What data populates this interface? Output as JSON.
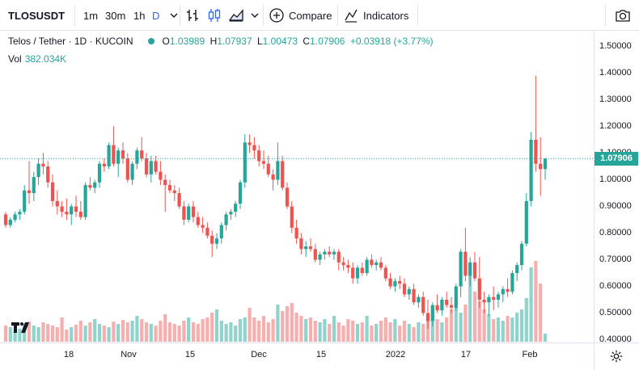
{
  "toolbar": {
    "symbol": "TLOSUSDT",
    "intervals": [
      "1m",
      "30m",
      "1h",
      "D"
    ],
    "active_interval": "D",
    "compare_label": "Compare",
    "indicators_label": "Indicators"
  },
  "legend": {
    "pair": "Telos / Tether · 1D · KUCOIN",
    "open_label": "O",
    "open": "1.03989",
    "high_label": "H",
    "high": "1.07937",
    "low_label": "L",
    "low": "1.00473",
    "close_label": "C",
    "close": "1.07906",
    "change": "+0.03918 (+3.77%)",
    "vol_label": "Vol",
    "vol_value": "382.034K"
  },
  "price_axis": {
    "ticks": [
      "1.50000",
      "1.40000",
      "1.30000",
      "1.20000",
      "1.10000",
      "1.00000",
      "0.90000",
      "0.80000",
      "0.70000",
      "0.60000",
      "0.50000",
      "0.40000"
    ],
    "last_price": "1.07906"
  },
  "time_axis": {
    "ticks": [
      "18",
      "Nov",
      "15",
      "Dec",
      "15",
      "2022",
      "17",
      "Feb"
    ]
  },
  "colors": {
    "up": "#26a69a",
    "down": "#ef5350",
    "vol_up": "#8fd3cc",
    "vol_down": "#f7aeae"
  },
  "chart_data": {
    "type": "candlestick",
    "symbol": "TLOSUSDT",
    "exchange": "KUCOIN",
    "interval": "1D",
    "ylim": [
      0.35,
      1.5
    ],
    "x_tick_labels": [
      "18",
      "Nov",
      "15",
      "Dec",
      "15",
      "2022",
      "17",
      "Feb"
    ],
    "candles": [
      [
        0.87,
        0.88,
        0.82,
        0.83
      ],
      [
        0.83,
        0.86,
        0.82,
        0.85
      ],
      [
        0.85,
        0.88,
        0.84,
        0.87
      ],
      [
        0.87,
        0.89,
        0.85,
        0.88
      ],
      [
        0.88,
        0.98,
        0.87,
        0.96
      ],
      [
        0.96,
        1.07,
        0.91,
        0.95
      ],
      [
        0.95,
        1.03,
        0.92,
        1.01
      ],
      [
        1.01,
        1.08,
        0.98,
        1.06
      ],
      [
        1.06,
        1.1,
        1.02,
        1.05
      ],
      [
        1.05,
        1.07,
        0.97,
        0.99
      ],
      [
        0.99,
        1.02,
        0.9,
        0.92
      ],
      [
        0.92,
        0.96,
        0.87,
        0.9
      ],
      [
        0.9,
        0.92,
        0.86,
        0.88
      ],
      [
        0.88,
        0.93,
        0.85,
        0.87
      ],
      [
        0.87,
        0.91,
        0.83,
        0.9
      ],
      [
        0.9,
        0.94,
        0.86,
        0.88
      ],
      [
        0.88,
        0.92,
        0.85,
        0.86
      ],
      [
        0.86,
        0.99,
        0.85,
        0.98
      ],
      [
        0.98,
        1.01,
        0.96,
        0.97
      ],
      [
        0.97,
        1.0,
        0.95,
        0.99
      ],
      [
        0.99,
        1.07,
        0.97,
        1.06
      ],
      [
        1.06,
        1.08,
        1.03,
        1.05
      ],
      [
        1.05,
        1.14,
        1.04,
        1.13
      ],
      [
        1.13,
        1.2,
        1.05,
        1.06
      ],
      [
        1.06,
        1.12,
        1.01,
        1.11
      ],
      [
        1.11,
        1.14,
        1.06,
        1.08
      ],
      [
        1.08,
        1.1,
        0.99,
        1.0
      ],
      [
        1.0,
        1.07,
        0.98,
        1.06
      ],
      [
        1.06,
        1.12,
        1.04,
        1.11
      ],
      [
        1.11,
        1.16,
        1.07,
        1.08
      ],
      [
        1.08,
        1.1,
        1.01,
        1.02
      ],
      [
        1.02,
        1.09,
        0.99,
        1.07
      ],
      [
        1.07,
        1.09,
        1.02,
        1.03
      ],
      [
        1.03,
        1.07,
        0.98,
        1.0
      ],
      [
        1.0,
        1.02,
        0.88,
        0.98
      ],
      [
        0.98,
        1.0,
        0.95,
        0.96
      ],
      [
        0.96,
        0.98,
        0.92,
        0.95
      ],
      [
        0.95,
        0.97,
        0.89,
        0.9
      ],
      [
        0.9,
        0.92,
        0.83,
        0.85
      ],
      [
        0.85,
        0.91,
        0.84,
        0.9
      ],
      [
        0.9,
        0.92,
        0.84,
        0.86
      ],
      [
        0.86,
        0.88,
        0.82,
        0.83
      ],
      [
        0.83,
        0.86,
        0.8,
        0.82
      ],
      [
        0.82,
        0.84,
        0.78,
        0.79
      ],
      [
        0.79,
        0.81,
        0.71,
        0.76
      ],
      [
        0.76,
        0.8,
        0.74,
        0.78
      ],
      [
        0.78,
        0.84,
        0.76,
        0.83
      ],
      [
        0.83,
        0.88,
        0.81,
        0.87
      ],
      [
        0.87,
        0.89,
        0.85,
        0.88
      ],
      [
        0.88,
        0.92,
        0.86,
        0.91
      ],
      [
        0.91,
        1.0,
        0.89,
        0.99
      ],
      [
        0.99,
        1.17,
        0.97,
        1.14
      ],
      [
        1.14,
        1.17,
        1.1,
        1.13
      ],
      [
        1.13,
        1.16,
        1.08,
        1.11
      ],
      [
        1.11,
        1.13,
        1.05,
        1.07
      ],
      [
        1.07,
        1.11,
        1.04,
        1.06
      ],
      [
        1.06,
        1.09,
        1.01,
        1.02
      ],
      [
        1.02,
        1.04,
        0.96,
        1.0
      ],
      [
        1.0,
        1.14,
        0.98,
        1.07
      ],
      [
        1.07,
        1.09,
        0.96,
        0.97
      ],
      [
        0.97,
        0.99,
        0.89,
        0.9
      ],
      [
        0.9,
        0.92,
        0.8,
        0.82
      ],
      [
        0.82,
        0.85,
        0.76,
        0.78
      ],
      [
        0.78,
        0.8,
        0.72,
        0.74
      ],
      [
        0.74,
        0.77,
        0.71,
        0.75
      ],
      [
        0.75,
        0.78,
        0.73,
        0.74
      ],
      [
        0.74,
        0.76,
        0.69,
        0.7
      ],
      [
        0.7,
        0.73,
        0.68,
        0.72
      ],
      [
        0.72,
        0.74,
        0.7,
        0.73
      ],
      [
        0.73,
        0.75,
        0.71,
        0.72
      ],
      [
        0.72,
        0.74,
        0.7,
        0.73
      ],
      [
        0.73,
        0.74,
        0.66,
        0.69
      ],
      [
        0.69,
        0.71,
        0.66,
        0.68
      ],
      [
        0.68,
        0.7,
        0.65,
        0.67
      ],
      [
        0.67,
        0.69,
        0.61,
        0.63
      ],
      [
        0.63,
        0.68,
        0.61,
        0.67
      ],
      [
        0.67,
        0.69,
        0.64,
        0.65
      ],
      [
        0.65,
        0.71,
        0.64,
        0.7
      ],
      [
        0.7,
        0.72,
        0.67,
        0.68
      ],
      [
        0.68,
        0.7,
        0.66,
        0.69
      ],
      [
        0.69,
        0.71,
        0.66,
        0.67
      ],
      [
        0.67,
        0.68,
        0.62,
        0.63
      ],
      [
        0.63,
        0.65,
        0.59,
        0.6
      ],
      [
        0.6,
        0.63,
        0.58,
        0.62
      ],
      [
        0.62,
        0.64,
        0.59,
        0.61
      ],
      [
        0.61,
        0.63,
        0.56,
        0.57
      ],
      [
        0.57,
        0.6,
        0.55,
        0.59
      ],
      [
        0.59,
        0.61,
        0.53,
        0.54
      ],
      [
        0.54,
        0.57,
        0.52,
        0.56
      ],
      [
        0.56,
        0.58,
        0.49,
        0.5
      ],
      [
        0.5,
        0.55,
        0.44,
        0.47
      ],
      [
        0.47,
        0.54,
        0.45,
        0.53
      ],
      [
        0.53,
        0.57,
        0.5,
        0.51
      ],
      [
        0.51,
        0.56,
        0.49,
        0.55
      ],
      [
        0.55,
        0.58,
        0.52,
        0.53
      ],
      [
        0.53,
        0.56,
        0.5,
        0.52
      ],
      [
        0.52,
        0.61,
        0.51,
        0.6
      ],
      [
        0.6,
        0.74,
        0.56,
        0.73
      ],
      [
        0.73,
        0.82,
        0.62,
        0.64
      ],
      [
        0.64,
        0.71,
        0.6,
        0.69
      ],
      [
        0.69,
        0.73,
        0.62,
        0.63
      ],
      [
        0.63,
        0.71,
        0.52,
        0.55
      ],
      [
        0.55,
        0.58,
        0.5,
        0.54
      ],
      [
        0.54,
        0.57,
        0.49,
        0.56
      ],
      [
        0.56,
        0.6,
        0.51,
        0.55
      ],
      [
        0.55,
        0.58,
        0.52,
        0.57
      ],
      [
        0.57,
        0.6,
        0.54,
        0.59
      ],
      [
        0.59,
        0.63,
        0.56,
        0.58
      ],
      [
        0.58,
        0.66,
        0.57,
        0.65
      ],
      [
        0.65,
        0.69,
        0.62,
        0.68
      ],
      [
        0.68,
        0.77,
        0.66,
        0.76
      ],
      [
        0.76,
        0.95,
        0.75,
        0.92
      ],
      [
        0.92,
        1.18,
        0.9,
        1.15
      ],
      [
        1.15,
        1.39,
        1.03,
        1.06
      ],
      [
        1.06,
        1.16,
        0.94,
        1.04
      ],
      [
        1.04,
        1.08,
        1.0,
        1.08
      ]
    ],
    "volumes": [
      0.2,
      0.18,
      0.14,
      0.16,
      0.22,
      0.25,
      0.2,
      0.18,
      0.24,
      0.22,
      0.2,
      0.18,
      0.3,
      0.15,
      0.18,
      0.21,
      0.26,
      0.2,
      0.24,
      0.28,
      0.22,
      0.2,
      0.18,
      0.25,
      0.22,
      0.27,
      0.24,
      0.26,
      0.32,
      0.28,
      0.24,
      0.22,
      0.2,
      0.26,
      0.34,
      0.24,
      0.22,
      0.2,
      0.26,
      0.3,
      0.24,
      0.22,
      0.28,
      0.3,
      0.36,
      0.4,
      0.26,
      0.22,
      0.24,
      0.2,
      0.28,
      0.3,
      0.42,
      0.3,
      0.26,
      0.32,
      0.24,
      0.28,
      0.46,
      0.38,
      0.44,
      0.48,
      0.36,
      0.32,
      0.28,
      0.3,
      0.26,
      0.24,
      0.28,
      0.22,
      0.32,
      0.24,
      0.2,
      0.28,
      0.26,
      0.22,
      0.24,
      0.32,
      0.2,
      0.22,
      0.26,
      0.3,
      0.24,
      0.28,
      0.2,
      0.26,
      0.22,
      0.18,
      0.24,
      0.22,
      0.34,
      0.26,
      0.28,
      0.24,
      0.3,
      0.4,
      0.5,
      0.36,
      0.46,
      0.82,
      0.62,
      0.5,
      0.4,
      0.34,
      0.28,
      0.3,
      0.26,
      0.32,
      0.3,
      0.36,
      0.4,
      0.54,
      0.92,
      1.0,
      0.72,
      0.1
    ]
  }
}
